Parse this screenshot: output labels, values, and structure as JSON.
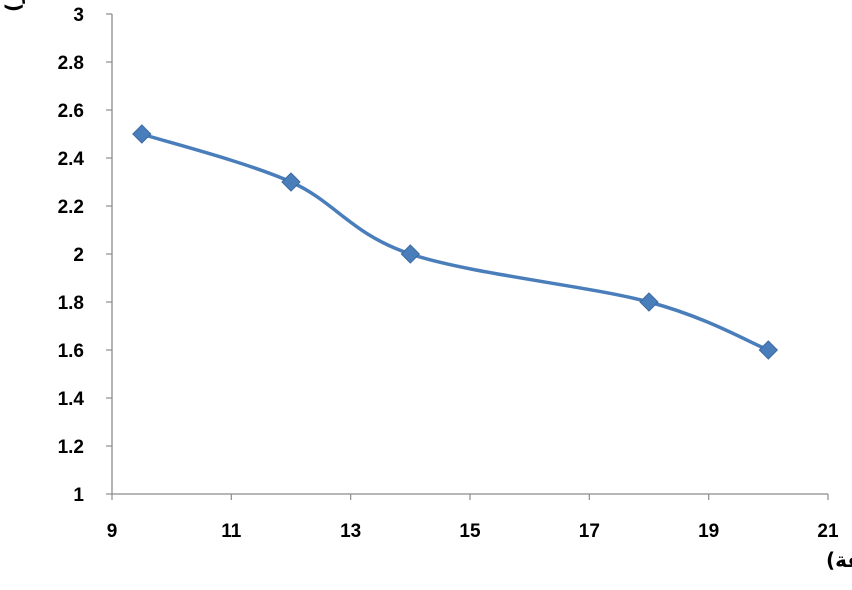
{
  "chart_data": {
    "type": "line",
    "smooth": true,
    "xlabel": "معدل التدفق (لتر/دقيقة)",
    "ylabel": "ضغط المضخة (بار)",
    "xlim": [
      9,
      21
    ],
    "ylim": [
      1,
      3
    ],
    "xticks": [
      "9",
      "11",
      "13",
      "15",
      "17",
      "19",
      "21"
    ],
    "yticks": [
      "1",
      "1.2",
      "1.4",
      "1.6",
      "1.8",
      "2",
      "2.2",
      "2.4",
      "2.6",
      "2.8",
      "3"
    ],
    "grid": false,
    "legend": false,
    "marker": "diamond",
    "color": "#4a7ebb",
    "x": [
      9.5,
      12,
      14,
      18,
      20
    ],
    "y": [
      2.5,
      2.3,
      2.0,
      1.8,
      1.6
    ]
  }
}
